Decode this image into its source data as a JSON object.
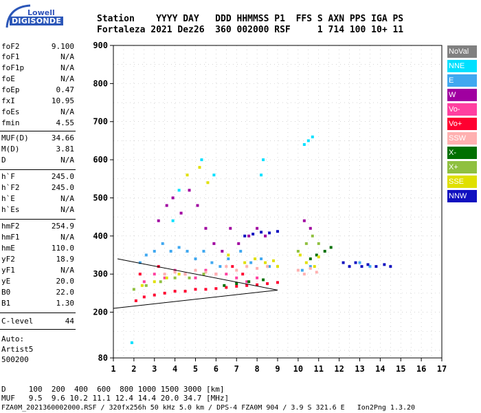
{
  "logo": {
    "top": "Lowell",
    "bottom": "DIGISONDE"
  },
  "header": {
    "line1": "Station    YYYY DAY   DDD HHMMSS P1  FFS S AXN PPS IGA PS",
    "line2": "Fortaleza 2021 Dez26  360 002000 RSF     1 714 100 10+ 11"
  },
  "params": [
    {
      "k": "foF2",
      "v": "9.100"
    },
    {
      "k": "foF1",
      "v": "N/A"
    },
    {
      "k": "foF1p",
      "v": "N/A"
    },
    {
      "k": "foE",
      "v": "N/A"
    },
    {
      "k": "foEp",
      "v": "0.47"
    },
    {
      "k": "fxI",
      "v": "10.95"
    },
    {
      "k": "foEs",
      "v": "N/A"
    },
    {
      "k": "fmin",
      "v": "4.55"
    },
    {
      "k": "MUF(D)",
      "v": "34.66"
    },
    {
      "k": "M(D)",
      "v": "3.81"
    },
    {
      "k": "D",
      "v": "N/A"
    },
    {
      "k": "h`F",
      "v": "245.0"
    },
    {
      "k": "h`F2",
      "v": "245.0"
    },
    {
      "k": "h`E",
      "v": "N/A"
    },
    {
      "k": "h`Es",
      "v": "N/A"
    },
    {
      "k": "hmF2",
      "v": "254.9"
    },
    {
      "k": "hmF1",
      "v": "N/A"
    },
    {
      "k": "hmE",
      "v": "110.0"
    },
    {
      "k": "yF2",
      "v": "18.9"
    },
    {
      "k": "yF1",
      "v": "N/A"
    },
    {
      "k": "yE",
      "v": "20.0"
    },
    {
      "k": "B0",
      "v": "22.0"
    },
    {
      "k": "B1",
      "v": "1.30"
    },
    {
      "k": "C-level",
      "v": "44"
    }
  ],
  "auto": {
    "label": "Auto:",
    "artist": "Artist5",
    "code": "500200"
  },
  "legend": [
    {
      "label": "NoVal",
      "color": "#808080"
    },
    {
      "label": "NNE",
      "color": "#00e0ff"
    },
    {
      "label": "E",
      "color": "#40a8f0"
    },
    {
      "label": "W",
      "color": "#a000a0"
    },
    {
      "label": "Vo-",
      "color": "#ff40a0"
    },
    {
      "label": "Vo+",
      "color": "#ff0030"
    },
    {
      "label": "SSW",
      "color": "#ffb0b0"
    },
    {
      "label": "X-",
      "color": "#007000"
    },
    {
      "label": "X+",
      "color": "#90c040"
    },
    {
      "label": "SSE",
      "color": "#e0e000"
    },
    {
      "label": "NNW",
      "color": "#1010c0"
    }
  ],
  "footer": {
    "line1": "D     100  200  400  600  800 1000 1500 3000 [km]",
    "line2": "MUF   9.5  9.6 10.2 11.1 12.4 14.4 20.0 34.7 [MHz]",
    "line3": "FZA0M_2021360002000.RSF / 320fx256h 50 kHz 5.0 km / DPS-4 FZA0M 904 / 3.9 S 321.6 E   Ion2Png 1.3.20"
  },
  "chart_data": {
    "type": "scatter",
    "xlim": [
      1,
      17
    ],
    "ylim": [
      80,
      900
    ],
    "xticks": [
      1,
      2,
      3,
      4,
      5,
      6,
      7,
      8,
      9,
      10,
      11,
      12,
      13,
      14,
      15,
      16,
      17
    ],
    "yticks": [
      80,
      200,
      300,
      400,
      500,
      600,
      700,
      800,
      900
    ],
    "grid": true,
    "legend_position": "right",
    "series": [
      {
        "name": "NNE",
        "points": [
          [
            3.9,
            440
          ],
          [
            4.2,
            520
          ],
          [
            5.3,
            600
          ],
          [
            5.9,
            560
          ],
          [
            8.2,
            560
          ],
          [
            8.3,
            600
          ],
          [
            10.3,
            640
          ],
          [
            10.5,
            650
          ],
          [
            10.7,
            660
          ],
          [
            1.9,
            120
          ]
        ]
      },
      {
        "name": "E",
        "points": [
          [
            2.3,
            330
          ],
          [
            2.6,
            350
          ],
          [
            3.0,
            360
          ],
          [
            3.4,
            380
          ],
          [
            3.8,
            360
          ],
          [
            4.2,
            370
          ],
          [
            4.6,
            360
          ],
          [
            5.0,
            340
          ],
          [
            5.4,
            360
          ],
          [
            5.8,
            330
          ],
          [
            6.2,
            320
          ],
          [
            6.6,
            340
          ],
          [
            7.2,
            360
          ],
          [
            7.7,
            330
          ],
          [
            8.2,
            340
          ],
          [
            8.6,
            320
          ],
          [
            10.2,
            310
          ],
          [
            10.6,
            320
          ],
          [
            13.0,
            330
          ],
          [
            13.5,
            320
          ]
        ]
      },
      {
        "name": "W",
        "points": [
          [
            3.2,
            440
          ],
          [
            3.6,
            480
          ],
          [
            3.9,
            500
          ],
          [
            4.3,
            460
          ],
          [
            4.7,
            520
          ],
          [
            5.1,
            480
          ],
          [
            5.5,
            420
          ],
          [
            5.9,
            380
          ],
          [
            6.3,
            360
          ],
          [
            6.7,
            420
          ],
          [
            7.1,
            380
          ],
          [
            7.6,
            400
          ],
          [
            8.0,
            420
          ],
          [
            8.4,
            400
          ],
          [
            10.3,
            440
          ],
          [
            10.6,
            420
          ]
        ]
      },
      {
        "name": "Vo-",
        "points": [
          [
            2.5,
            280
          ],
          [
            3.0,
            300
          ],
          [
            3.5,
            290
          ],
          [
            4.0,
            310
          ],
          [
            4.5,
            300
          ],
          [
            5.0,
            290
          ],
          [
            5.5,
            310
          ],
          [
            6.0,
            300
          ],
          [
            6.5,
            300
          ],
          [
            7.0,
            290
          ],
          [
            7.5,
            280
          ],
          [
            8.0,
            290
          ]
        ]
      },
      {
        "name": "Vo+",
        "points": [
          [
            2.1,
            230
          ],
          [
            2.5,
            240
          ],
          [
            3.0,
            245
          ],
          [
            3.5,
            250
          ],
          [
            4.0,
            255
          ],
          [
            4.5,
            255
          ],
          [
            5.0,
            260
          ],
          [
            5.5,
            260
          ],
          [
            6.0,
            262
          ],
          [
            6.5,
            265
          ],
          [
            7.0,
            268
          ],
          [
            7.5,
            270
          ],
          [
            8.0,
            272
          ],
          [
            8.5,
            275
          ],
          [
            9.0,
            278
          ],
          [
            2.3,
            300
          ],
          [
            3.2,
            320
          ],
          [
            6.8,
            320
          ],
          [
            7.3,
            300
          ]
        ]
      },
      {
        "name": "SSW",
        "points": [
          [
            3.5,
            300
          ],
          [
            4.0,
            305
          ],
          [
            4.5,
            300
          ],
          [
            5.0,
            310
          ],
          [
            5.5,
            305
          ],
          [
            6.0,
            300
          ],
          [
            6.5,
            320
          ],
          [
            7.0,
            310
          ],
          [
            7.5,
            320
          ],
          [
            8.0,
            315
          ],
          [
            8.5,
            320
          ],
          [
            10.0,
            310
          ],
          [
            10.3,
            300
          ],
          [
            10.6,
            315
          ],
          [
            10.9,
            305
          ]
        ]
      },
      {
        "name": "X-",
        "points": [
          [
            6.4,
            270
          ],
          [
            7.0,
            275
          ],
          [
            7.6,
            280
          ],
          [
            8.3,
            285
          ],
          [
            10.6,
            340
          ],
          [
            10.9,
            350
          ],
          [
            11.3,
            360
          ],
          [
            11.6,
            370
          ]
        ]
      },
      {
        "name": "X+",
        "points": [
          [
            2.0,
            260
          ],
          [
            2.6,
            270
          ],
          [
            3.3,
            280
          ],
          [
            4.0,
            290
          ],
          [
            4.7,
            290
          ],
          [
            5.4,
            300
          ],
          [
            10.0,
            360
          ],
          [
            10.4,
            380
          ],
          [
            10.7,
            400
          ],
          [
            11.0,
            380
          ]
        ]
      },
      {
        "name": "SSE",
        "points": [
          [
            2.4,
            270
          ],
          [
            3.0,
            280
          ],
          [
            3.6,
            290
          ],
          [
            4.2,
            300
          ],
          [
            4.6,
            560
          ],
          [
            5.2,
            580
          ],
          [
            5.6,
            540
          ],
          [
            6.6,
            350
          ],
          [
            7.4,
            330
          ],
          [
            7.9,
            340
          ],
          [
            8.4,
            330
          ],
          [
            8.8,
            335
          ],
          [
            9.0,
            320
          ],
          [
            10.1,
            350
          ],
          [
            10.4,
            330
          ],
          [
            10.8,
            320
          ],
          [
            11.0,
            345
          ]
        ]
      },
      {
        "name": "NNW",
        "points": [
          [
            7.4,
            400
          ],
          [
            7.8,
            405
          ],
          [
            8.2,
            410
          ],
          [
            8.6,
            408
          ],
          [
            9.0,
            412
          ],
          [
            12.2,
            330
          ],
          [
            12.5,
            320
          ],
          [
            12.8,
            330
          ],
          [
            13.1,
            320
          ],
          [
            13.4,
            325
          ],
          [
            13.8,
            320
          ],
          [
            14.2,
            325
          ],
          [
            14.5,
            320
          ]
        ]
      }
    ],
    "profile_lines": [
      [
        [
          1.0,
          210
        ],
        [
          9.0,
          258
        ]
      ],
      [
        [
          1.2,
          340
        ],
        [
          9.0,
          258
        ]
      ]
    ]
  }
}
